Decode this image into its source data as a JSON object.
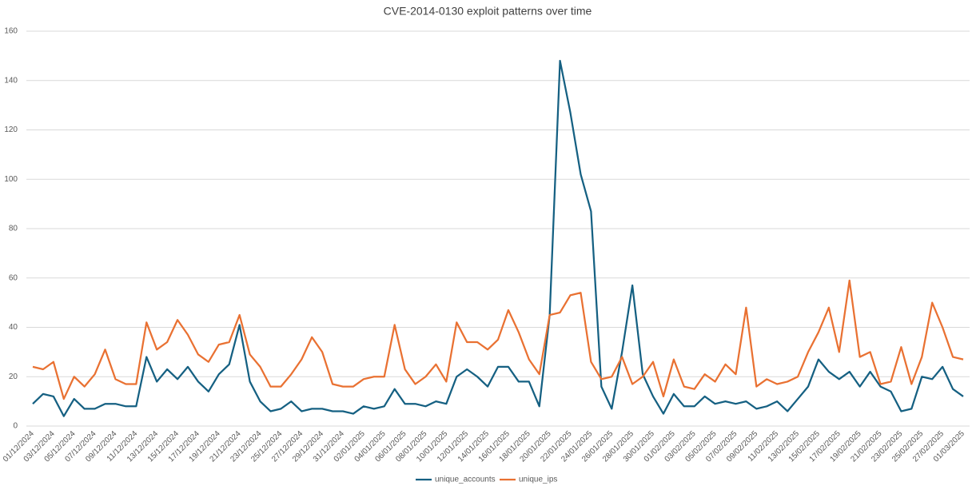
{
  "chart_data": {
    "type": "line",
    "title": "CVE-2014-0130  exploit patterns over time",
    "categories": [
      "01/12/2024",
      null,
      "03/12/2024",
      null,
      "05/12/2024",
      null,
      "07/12/2024",
      null,
      "09/12/2024",
      null,
      "11/12/2024",
      null,
      "13/12/2024",
      null,
      "15/12/2024",
      null,
      "17/12/2024",
      null,
      "19/12/2024",
      null,
      "21/12/2024",
      null,
      "23/12/2024",
      null,
      "25/12/2024",
      null,
      "27/12/2024",
      null,
      "29/12/2024",
      null,
      "31/12/2024",
      null,
      "02/01/2025",
      null,
      "04/01/2025",
      null,
      "06/01/2025",
      null,
      "08/01/2025",
      null,
      "10/01/2025",
      null,
      "12/01/2025",
      null,
      "14/01/2025",
      null,
      "16/01/2025",
      null,
      "18/01/2025",
      null,
      "20/01/2025",
      null,
      "22/01/2025",
      null,
      "24/01/2025",
      null,
      "26/01/2025",
      null,
      "28/01/2025",
      null,
      "30/01/2025",
      null,
      "01/02/2025",
      null,
      "03/02/2025",
      null,
      "05/02/2025",
      null,
      "07/02/2025",
      null,
      "09/02/2025",
      null,
      "11/02/2025",
      null,
      "13/02/2025",
      null,
      "15/02/2025",
      null,
      "17/02/2025",
      null,
      "19/02/2025",
      null,
      "21/02/2025",
      null,
      "23/02/2025",
      null,
      "25/02/2025",
      null,
      "27/02/2025",
      null,
      "01/03/2025"
    ],
    "series": [
      {
        "name": "unique_accounts",
        "color": "#156082",
        "values": [
          9,
          13,
          12,
          4,
          11,
          7,
          7,
          9,
          9,
          8,
          8,
          28,
          18,
          23,
          19,
          24,
          18,
          14,
          21,
          25,
          41,
          18,
          10,
          6,
          7,
          10,
          6,
          7,
          7,
          6,
          6,
          5,
          8,
          7,
          8,
          15,
          9,
          9,
          8,
          10,
          9,
          20,
          23,
          20,
          16,
          24,
          24,
          18,
          18,
          8,
          45,
          148,
          127,
          102,
          87,
          16,
          7,
          30,
          57,
          21,
          12,
          5,
          13,
          8,
          8,
          12,
          9,
          10,
          9,
          10,
          7,
          8,
          10,
          6,
          11,
          16,
          27,
          22,
          19,
          22,
          16,
          22,
          16,
          14,
          6,
          7,
          20,
          19,
          24,
          15,
          12
        ]
      },
      {
        "name": "unique_ips",
        "color": "#e97132",
        "values": [
          24,
          23,
          26,
          11,
          20,
          16,
          21,
          31,
          19,
          17,
          17,
          42,
          31,
          34,
          43,
          37,
          29,
          26,
          33,
          34,
          45,
          29,
          24,
          16,
          16,
          21,
          27,
          36,
          30,
          17,
          16,
          16,
          19,
          20,
          20,
          41,
          23,
          17,
          20,
          25,
          18,
          42,
          34,
          34,
          31,
          35,
          47,
          38,
          27,
          21,
          45,
          46,
          53,
          54,
          26,
          19,
          20,
          28,
          17,
          20,
          26,
          12,
          27,
          16,
          15,
          21,
          18,
          25,
          21,
          48,
          16,
          19,
          17,
          18,
          20,
          30,
          38,
          48,
          30,
          59,
          28,
          30,
          17,
          18,
          32,
          17,
          28,
          50,
          40,
          28,
          27
        ]
      }
    ],
    "ylim": [
      0,
      160
    ],
    "yticks": [
      0,
      20,
      40,
      60,
      80,
      100,
      120,
      140,
      160
    ],
    "grid": true,
    "legend": "bottom"
  }
}
